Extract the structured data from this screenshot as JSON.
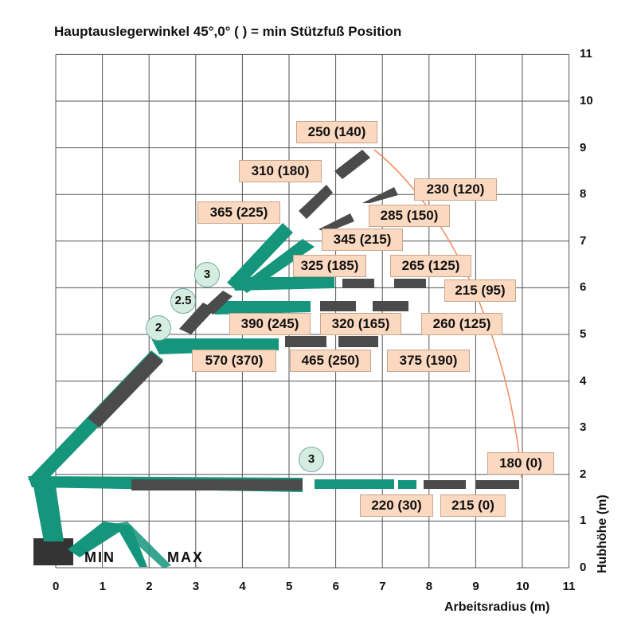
{
  "title": "Hauptauslegerwinkel 45°,0° ( ) = min Stützfuß Position",
  "x_axis": {
    "label": "Arbeitsradius (m)",
    "ticks": [
      "0",
      "1",
      "2",
      "3",
      "4",
      "5",
      "6",
      "7",
      "8",
      "9",
      "10",
      "11"
    ]
  },
  "y_axis": {
    "label": "Hubhöhe (m)",
    "ticks": [
      "0",
      "1",
      "2",
      "3",
      "4",
      "5",
      "6",
      "7",
      "8",
      "9",
      "10",
      "11"
    ]
  },
  "outrigger_labels": {
    "min": "MIN",
    "max": "MAX"
  },
  "stage_markers": [
    "3",
    "2.5",
    "2",
    "3"
  ],
  "loads": [
    "250 (140)",
    "310 (180)",
    "365 (225)",
    "230 (120)",
    "285 (150)",
    "345 (215)",
    "325 (185)",
    "265 (125)",
    "215 (95)",
    "390 (245)",
    "320 (165)",
    "260 (125)",
    "570 (370)",
    "465 (250)",
    "375 (190)",
    "180 (0)",
    "220 (30)",
    "215 (0)"
  ],
  "colors": {
    "boom": "#14957c",
    "extension": "#4b4b4b",
    "envelope": "#f08a5d",
    "label_bg": "#fbd8c0"
  }
}
